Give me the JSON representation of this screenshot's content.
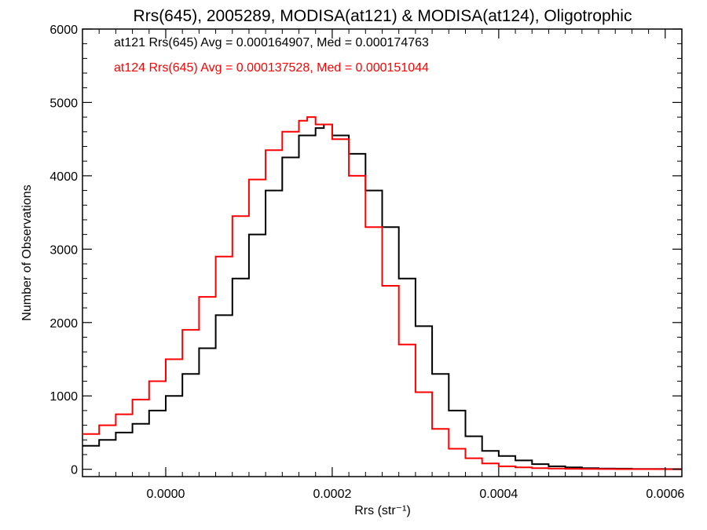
{
  "chart_data": {
    "type": "line",
    "style": "histogram-step",
    "title": "Rrs(645), 2005289, MODISA(at121) & MODISA(at124), Oligotrophic",
    "xlabel": "Rrs (str⁻¹)",
    "ylabel": "Number of Observations",
    "xlim": [
      -0.0001,
      0.00062
    ],
    "ylim": [
      -100,
      6000
    ],
    "xticks": [
      0.0,
      0.0002,
      0.0004,
      0.0006
    ],
    "xtick_labels": [
      "0.0000",
      "0.0002",
      "0.0004",
      "0.0006"
    ],
    "yticks": [
      0,
      1000,
      2000,
      3000,
      4000,
      5000,
      6000
    ],
    "ytick_labels": [
      "0",
      "1000",
      "2000",
      "3000",
      "4000",
      "5000",
      "6000"
    ],
    "grid": false,
    "legend_position": "top-left",
    "annotations": [
      {
        "text": "at121 Rrs(645) Avg = 0.000164907, Med = 0.000174763",
        "color": "#000000"
      },
      {
        "text": "at124 Rrs(645) Avg = 0.000137528, Med = 0.000151044",
        "color": "#ff0000"
      }
    ],
    "series": [
      {
        "color": "#000000",
        "x": [
          -0.0001,
          -8e-05,
          -6e-05,
          -4e-05,
          -2e-05,
          0.0,
          2e-05,
          4e-05,
          6e-05,
          8e-05,
          0.0001,
          0.00012,
          0.00014,
          0.00016,
          0.00018,
          0.00019,
          0.0002,
          0.00022,
          0.00024,
          0.00026,
          0.00028,
          0.0003,
          0.00032,
          0.00034,
          0.00036,
          0.00038,
          0.0004,
          0.00042,
          0.00044,
          0.00046,
          0.00048,
          0.0005,
          0.00052,
          0.00054,
          0.00056,
          0.00058,
          0.0006,
          0.00062
        ],
        "y": [
          320,
          400,
          500,
          620,
          800,
          1000,
          1300,
          1650,
          2100,
          2600,
          3200,
          3800,
          4250,
          4550,
          4650,
          4700,
          4550,
          4300,
          3800,
          3300,
          2600,
          1950,
          1300,
          800,
          450,
          250,
          180,
          120,
          70,
          40,
          25,
          15,
          10,
          8,
          5,
          4,
          3,
          3
        ]
      },
      {
        "color": "#ff0000",
        "x": [
          -0.0001,
          -8e-05,
          -6e-05,
          -4e-05,
          -2e-05,
          0.0,
          2e-05,
          4e-05,
          6e-05,
          8e-05,
          0.0001,
          0.00012,
          0.00014,
          0.00016,
          0.00017,
          0.00018,
          0.0002,
          0.00022,
          0.00024,
          0.00026,
          0.00028,
          0.0003,
          0.00032,
          0.00034,
          0.00036,
          0.00038,
          0.0004,
          0.00042,
          0.00044,
          0.00046,
          0.00048,
          0.0005,
          0.00052,
          0.00054,
          0.00056,
          0.00058,
          0.0006,
          0.00062
        ],
        "y": [
          480,
          600,
          750,
          950,
          1200,
          1500,
          1900,
          2350,
          2900,
          3450,
          3950,
          4350,
          4600,
          4750,
          4800,
          4700,
          4500,
          4000,
          3300,
          2500,
          1700,
          1050,
          550,
          280,
          150,
          80,
          40,
          25,
          15,
          10,
          6,
          4,
          3,
          2,
          2,
          2,
          1,
          1
        ]
      }
    ]
  }
}
